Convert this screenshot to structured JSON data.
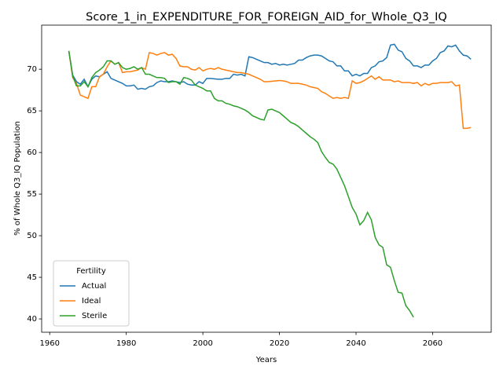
{
  "chart_data": {
    "type": "line",
    "title": "Score_1_in_EXPENDITURE_FOR_FOREIGN_AID_for_Whole_Q3_IQ",
    "xlabel": "Years",
    "ylabel": "% of Whole Q3_IQ Population",
    "legend_title": "Fertility",
    "legend": "lower left",
    "x": [
      1965,
      1966,
      1967,
      1968,
      1969,
      1970,
      1971,
      1972,
      1973,
      1974,
      1975,
      1976,
      1977,
      1978,
      1979,
      1980,
      1981,
      1982,
      1983,
      1984,
      1985,
      1986,
      1987,
      1988,
      1989,
      1990,
      1991,
      1992,
      1993,
      1994,
      1995,
      1996,
      1997,
      1998,
      1999,
      2000,
      2001,
      2002,
      2003,
      2004,
      2005,
      2006,
      2007,
      2008,
      2009,
      2010,
      2011,
      2012,
      2013,
      2014,
      2015,
      2016,
      2017,
      2018,
      2019,
      2020,
      2021,
      2022,
      2023,
      2024,
      2025,
      2026,
      2027,
      2028,
      2029,
      2030,
      2031,
      2032,
      2033,
      2034,
      2035,
      2036,
      2037,
      2038,
      2039,
      2040,
      2041,
      2042,
      2043,
      2044,
      2045,
      2046,
      2047,
      2048,
      2049,
      2050,
      2051,
      2052,
      2053,
      2054,
      2055,
      2056,
      2057,
      2058,
      2059,
      2060,
      2061,
      2062,
      2063,
      2064,
      2065,
      2066,
      2067,
      2068,
      2069,
      2070
    ],
    "series": [
      {
        "name": "Actual",
        "color": "#1f77b4",
        "values": [
          72.2,
          69.3,
          68.5,
          68.2,
          68.8,
          67.9,
          68.8,
          69.2,
          69.1,
          69.4,
          69.7,
          68.9,
          68.7,
          68.5,
          68.3,
          68.0,
          68.0,
          68.1,
          67.6,
          67.7,
          67.6,
          67.9,
          68.0,
          68.4,
          68.6,
          68.5,
          68.5,
          68.6,
          68.5,
          68.4,
          68.5,
          68.2,
          68.1,
          68.1,
          68.5,
          68.3,
          68.9,
          68.9,
          68.85,
          68.8,
          68.8,
          68.9,
          68.9,
          69.4,
          69.3,
          69.4,
          69.2,
          71.5,
          71.4,
          71.2,
          71.0,
          70.8,
          70.8,
          70.6,
          70.7,
          70.5,
          70.6,
          70.5,
          70.6,
          70.7,
          71.1,
          71.1,
          71.4,
          71.6,
          71.7,
          71.7,
          71.6,
          71.3,
          71.0,
          70.9,
          70.4,
          70.4,
          69.8,
          69.8,
          69.2,
          69.4,
          69.2,
          69.5,
          69.5,
          70.2,
          70.4,
          70.9,
          71.0,
          71.4,
          72.9,
          73.0,
          72.3,
          72.1,
          71.3,
          71.0,
          70.4,
          70.4,
          70.2,
          70.5,
          70.5,
          71.0,
          71.3,
          72.0,
          72.2,
          72.8,
          72.7,
          72.9,
          72.2,
          71.7,
          71.6,
          71.2
        ]
      },
      {
        "name": "Ideal",
        "color": "#ff7f0e",
        "values": [
          72.2,
          69.0,
          68.3,
          66.9,
          66.7,
          66.5,
          67.9,
          67.9,
          69.1,
          69.4,
          70.3,
          71.0,
          70.6,
          70.8,
          69.6,
          69.7,
          69.7,
          69.8,
          69.9,
          70.2,
          70.0,
          72.0,
          71.9,
          71.7,
          71.9,
          72.0,
          71.7,
          71.8,
          71.3,
          70.4,
          70.3,
          70.3,
          70.0,
          69.9,
          70.2,
          69.8,
          70.0,
          70.1,
          70.0,
          70.2,
          70.0,
          69.9,
          69.8,
          69.7,
          69.6,
          69.6,
          69.5,
          69.4,
          69.2,
          69.0,
          68.8,
          68.5,
          68.5,
          68.55,
          68.6,
          68.65,
          68.6,
          68.5,
          68.3,
          68.3,
          68.3,
          68.2,
          68.1,
          67.9,
          67.8,
          67.7,
          67.3,
          67.1,
          66.8,
          66.5,
          66.6,
          66.5,
          66.6,
          66.5,
          68.6,
          68.3,
          68.4,
          68.6,
          68.9,
          69.2,
          68.8,
          69.1,
          68.7,
          68.7,
          68.7,
          68.5,
          68.6,
          68.4,
          68.4,
          68.4,
          68.3,
          68.4,
          68.0,
          68.3,
          68.1,
          68.3,
          68.3,
          68.4,
          68.4,
          68.4,
          68.5,
          68.0,
          68.1,
          62.9,
          62.9,
          63.0
        ]
      },
      {
        "name": "Sterile",
        "color": "#2ca02c",
        "values": [
          72.2,
          69.2,
          68.0,
          68.0,
          68.5,
          67.9,
          69.0,
          69.6,
          69.9,
          70.3,
          71.0,
          71.0,
          70.6,
          70.8,
          70.2,
          70.0,
          70.1,
          70.3,
          70.0,
          70.2,
          69.4,
          69.4,
          69.2,
          69.0,
          69.0,
          68.9,
          68.4,
          68.5,
          68.5,
          68.2,
          69.0,
          68.9,
          68.7,
          68.1,
          67.9,
          67.7,
          67.4,
          67.4,
          66.5,
          66.2,
          66.2,
          65.9,
          65.8,
          65.6,
          65.5,
          65.3,
          65.1,
          64.8,
          64.4,
          64.2,
          64.0,
          63.9,
          65.1,
          65.2,
          65.0,
          64.8,
          64.4,
          64.0,
          63.6,
          63.4,
          63.1,
          62.7,
          62.3,
          61.9,
          61.6,
          61.2,
          60.1,
          59.4,
          58.8,
          58.6,
          58.0,
          57.0,
          56.0,
          54.7,
          53.4,
          52.6,
          51.3,
          51.8,
          52.8,
          51.9,
          49.8,
          48.9,
          48.6,
          46.5,
          46.2,
          44.6,
          43.2,
          43.1,
          41.6,
          41.0,
          40.2,
          null,
          null,
          null,
          null,
          null,
          null,
          null,
          null,
          null,
          null,
          null,
          null,
          null,
          null,
          null
        ]
      }
    ],
    "xlim": [
      1957.9,
      2075.3
    ],
    "xticks": [
      1960,
      1980,
      2000,
      2020,
      2040,
      2060
    ],
    "ylim": [
      38.4,
      75.3
    ],
    "yticks": [
      40,
      45,
      50,
      55,
      60,
      65,
      70
    ]
  }
}
